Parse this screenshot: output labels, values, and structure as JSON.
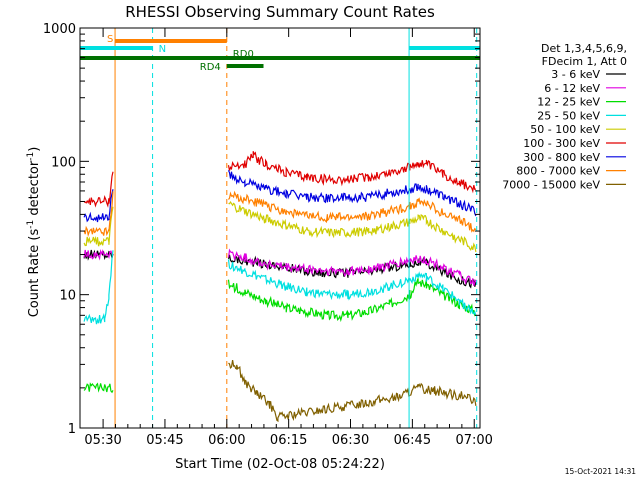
{
  "chart_data": {
    "type": "line",
    "title": "RHESSI Observing Summary Count Rates",
    "xlabel": "Start Time (02-Oct-08 05:24:22)",
    "ylabel_parts": [
      "Count Rate (s",
      "-1",
      " detector",
      "-1",
      ")"
    ],
    "y_scale": "log",
    "ylim": [
      1,
      1000
    ],
    "y_tick_labels": [
      "1",
      "10",
      "100",
      "1000"
    ],
    "y_ticks": [
      1,
      10,
      100,
      1000
    ],
    "xlim_minutes": [
      0,
      97
    ],
    "x_ticks": [
      {
        "label": "05:30",
        "minutes": 5.6
      },
      {
        "label": "05:45",
        "minutes": 20.6
      },
      {
        "label": "06:00",
        "minutes": 35.6
      },
      {
        "label": "06:15",
        "minutes": 50.6
      },
      {
        "label": "06:30",
        "minutes": 65.6
      },
      {
        "label": "06:45",
        "minutes": 80.6
      },
      {
        "label": "07:00",
        "minutes": 95.6
      }
    ],
    "legend_header": [
      "Det 1,3,4,5,6,9,",
      "FDecim 1, Att 0"
    ],
    "legend_placement": "right",
    "grid": false,
    "data_gap_minutes": [
      9,
      35.5
    ],
    "series": [
      {
        "name": "3 - 6 keV",
        "color": "#000000",
        "values": [
          [
            1,
            20
          ],
          [
            8,
            20
          ],
          [
            36,
            19
          ],
          [
            40,
            18
          ],
          [
            45,
            17
          ],
          [
            50,
            16
          ],
          [
            55,
            15
          ],
          [
            60,
            14.5
          ],
          [
            65,
            14.5
          ],
          [
            70,
            15
          ],
          [
            75,
            16
          ],
          [
            80,
            17
          ],
          [
            82,
            17.5
          ],
          [
            84,
            17
          ],
          [
            88,
            15
          ],
          [
            92,
            13
          ],
          [
            96,
            12
          ]
        ]
      },
      {
        "name": "6 - 12 keV",
        "color": "#e000e0",
        "values": [
          [
            1,
            20
          ],
          [
            8,
            20
          ],
          [
            36,
            20
          ],
          [
            40,
            19
          ],
          [
            45,
            17
          ],
          [
            50,
            16
          ],
          [
            55,
            15.5
          ],
          [
            60,
            15
          ],
          [
            65,
            15
          ],
          [
            70,
            15.5
          ],
          [
            75,
            16.5
          ],
          [
            80,
            18
          ],
          [
            82,
            18.5
          ],
          [
            84,
            18
          ],
          [
            88,
            16
          ],
          [
            92,
            14
          ],
          [
            96,
            12
          ]
        ]
      },
      {
        "name": "12 - 25 keV",
        "color": "#00dd00",
        "values": [
          [
            1,
            2
          ],
          [
            8,
            2
          ],
          [
            36,
            12
          ],
          [
            40,
            10.5
          ],
          [
            45,
            9
          ],
          [
            50,
            8
          ],
          [
            55,
            7.5
          ],
          [
            60,
            7
          ],
          [
            65,
            7
          ],
          [
            70,
            7.5
          ],
          [
            75,
            8.5
          ],
          [
            80,
            10
          ],
          [
            82,
            12.5
          ],
          [
            84,
            12
          ],
          [
            88,
            10
          ],
          [
            92,
            8.5
          ],
          [
            96,
            7.5
          ]
        ]
      },
      {
        "name": "25 - 50 keV",
        "color": "#00e0e0",
        "values": [
          [
            1,
            6.5
          ],
          [
            6,
            6.5
          ],
          [
            7,
            10
          ],
          [
            8,
            22
          ],
          [
            36,
            17
          ],
          [
            40,
            15
          ],
          [
            45,
            13
          ],
          [
            50,
            11.5
          ],
          [
            55,
            10.5
          ],
          [
            60,
            10
          ],
          [
            65,
            10
          ],
          [
            70,
            10.5
          ],
          [
            75,
            11.5
          ],
          [
            80,
            13
          ],
          [
            82,
            14
          ],
          [
            84,
            13.5
          ],
          [
            88,
            11
          ],
          [
            92,
            9
          ],
          [
            96,
            7
          ]
        ]
      },
      {
        "name": "50 - 100 keV",
        "color": "#cccc00",
        "values": [
          [
            1,
            25
          ],
          [
            7,
            25
          ],
          [
            8,
            45
          ],
          [
            36,
            48
          ],
          [
            40,
            42
          ],
          [
            45,
            37
          ],
          [
            50,
            33
          ],
          [
            55,
            30
          ],
          [
            60,
            29
          ],
          [
            65,
            29
          ],
          [
            70,
            30
          ],
          [
            75,
            32
          ],
          [
            80,
            35
          ],
          [
            82,
            37
          ],
          [
            84,
            36
          ],
          [
            88,
            30
          ],
          [
            92,
            26
          ],
          [
            96,
            22
          ]
        ]
      },
      {
        "name": "100 - 300 keV",
        "color": "#e00000",
        "values": [
          [
            1,
            50
          ],
          [
            7,
            50
          ],
          [
            8,
            85
          ],
          [
            36,
            90
          ],
          [
            40,
            95
          ],
          [
            42,
            110
          ],
          [
            45,
            95
          ],
          [
            50,
            82
          ],
          [
            55,
            76
          ],
          [
            60,
            73
          ],
          [
            65,
            73
          ],
          [
            70,
            76
          ],
          [
            75,
            82
          ],
          [
            80,
            90
          ],
          [
            82,
            97
          ],
          [
            84,
            95
          ],
          [
            88,
            80
          ],
          [
            92,
            70
          ],
          [
            96,
            60
          ]
        ]
      },
      {
        "name": "300 - 800 keV",
        "color": "#0000e0",
        "values": [
          [
            1,
            38
          ],
          [
            7,
            38
          ],
          [
            8,
            65
          ],
          [
            36,
            80
          ],
          [
            40,
            70
          ],
          [
            45,
            62
          ],
          [
            50,
            57
          ],
          [
            55,
            54
          ],
          [
            60,
            53
          ],
          [
            65,
            53
          ],
          [
            70,
            54
          ],
          [
            75,
            58
          ],
          [
            80,
            62
          ],
          [
            82,
            65
          ],
          [
            84,
            62
          ],
          [
            88,
            55
          ],
          [
            92,
            48
          ],
          [
            96,
            42
          ]
        ]
      },
      {
        "name": "800 - 7000 keV",
        "color": "#ff8000",
        "values": [
          [
            1,
            30
          ],
          [
            7,
            30
          ],
          [
            8,
            55
          ],
          [
            36,
            55
          ],
          [
            40,
            52
          ],
          [
            45,
            47
          ],
          [
            50,
            42
          ],
          [
            55,
            39
          ],
          [
            60,
            38
          ],
          [
            65,
            38
          ],
          [
            70,
            39
          ],
          [
            75,
            42
          ],
          [
            80,
            46
          ],
          [
            82,
            49
          ],
          [
            84,
            48
          ],
          [
            88,
            41
          ],
          [
            92,
            36
          ],
          [
            96,
            31
          ]
        ]
      },
      {
        "name": "7000 - 15000 keV",
        "color": "#806000",
        "values": [
          [
            36,
            3
          ],
          [
            38,
            3
          ],
          [
            40,
            2.2
          ],
          [
            43,
            1.8
          ],
          [
            46,
            1.5
          ],
          [
            48,
            1.2
          ],
          [
            77,
            1.7
          ],
          [
            82,
            2
          ],
          [
            86,
            1.9
          ],
          [
            90,
            1.8
          ],
          [
            94,
            1.7
          ],
          [
            96,
            1.5
          ]
        ]
      }
    ],
    "status_bars": [
      {
        "label": "S",
        "color": "#ff8000",
        "level": "top",
        "from_minutes": 8.5,
        "to_minutes": 35.6
      },
      {
        "label": "N",
        "color": "#00e0e0",
        "level": "upper",
        "from_minutes": 0,
        "to_minutes": 17.6
      },
      {
        "label": "N",
        "color": "#00e0e0",
        "level": "upper",
        "from_minutes": 79.8,
        "to_minutes": 97
      },
      {
        "label": "RD0",
        "color": "#007000",
        "level": "lower",
        "from_minutes": 0,
        "to_minutes": 97
      },
      {
        "label": "RD4",
        "color": "#007000",
        "level": "lowest",
        "from_minutes": 35.6,
        "to_minutes": 44.5
      }
    ],
    "vertical_markers": [
      {
        "color": "#ff8000",
        "style": "solid",
        "minutes": 8.5
      },
      {
        "color": "#00e0e0",
        "style": "dashed",
        "minutes": 17.6
      },
      {
        "color": "#ff8000",
        "style": "dashed",
        "minutes": 35.6
      },
      {
        "color": "#00e0e0",
        "style": "solid",
        "minutes": 79.8
      },
      {
        "color": "#00e0e0",
        "style": "dashed",
        "minutes": 96.2
      }
    ]
  },
  "footer": {
    "timestamp": "15-Oct-2021 14:31"
  }
}
